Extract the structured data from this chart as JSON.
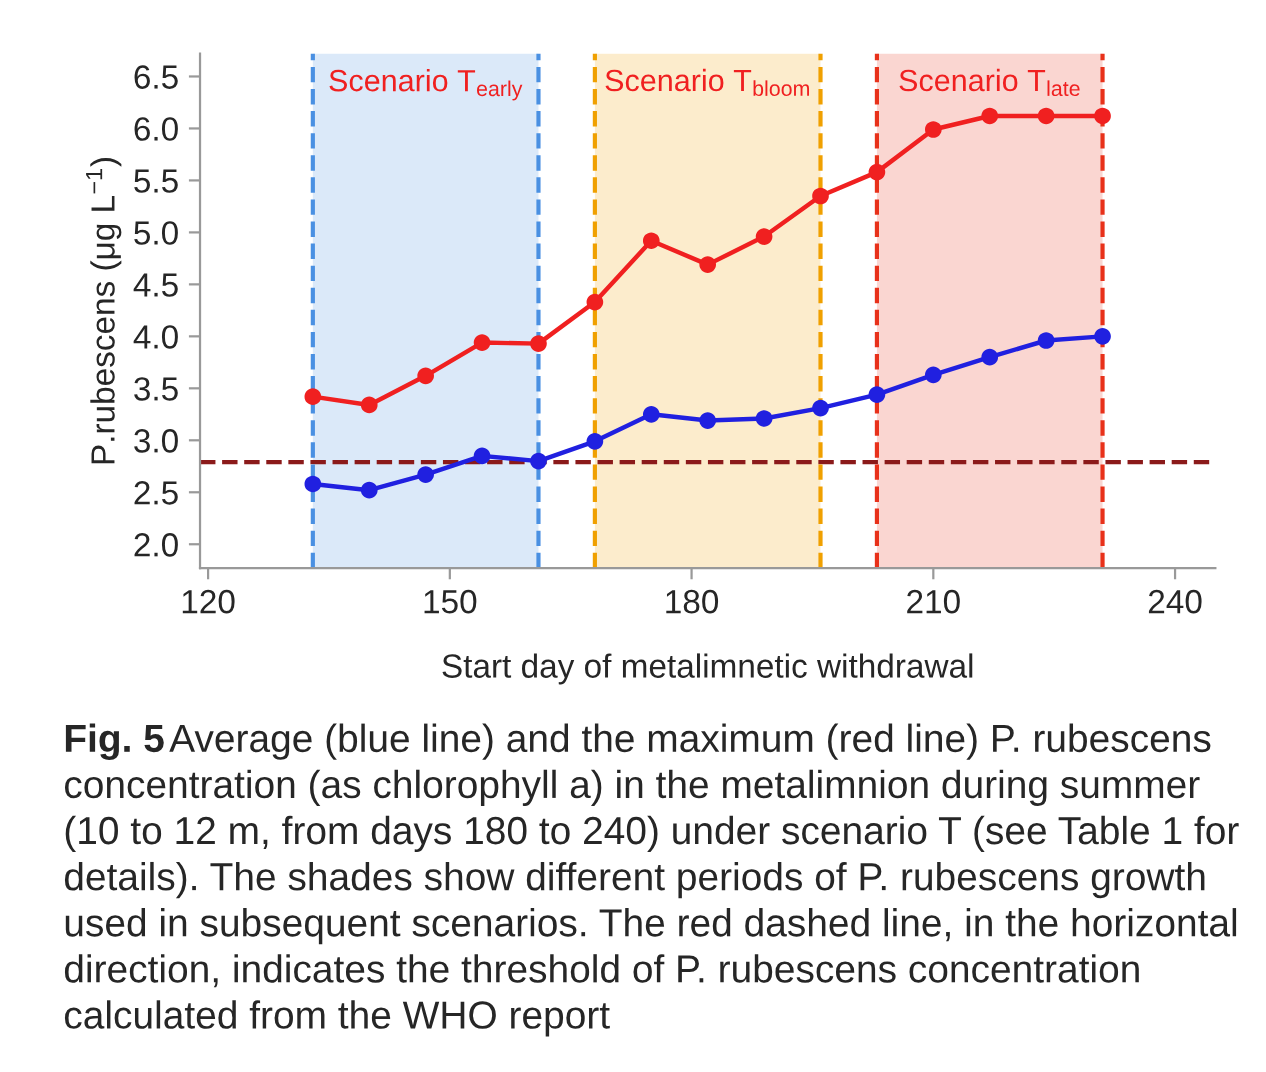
{
  "chart_data": {
    "type": "line",
    "xlabel": "Start day of metalimnetic withdrawal",
    "ylabel": "P.rubescens (μg L$^{−1}$)",
    "x": [
      133,
      140,
      147,
      154,
      161,
      168,
      175,
      182,
      189,
      196,
      203,
      210,
      217,
      224,
      231
    ],
    "series": [
      {
        "color": "#f02020",
        "values": [
          3.42,
          3.34,
          3.62,
          3.94,
          3.93,
          4.33,
          4.92,
          4.69,
          4.96,
          5.35,
          5.58,
          5.99,
          6.12,
          6.12,
          6.12
        ]
      },
      {
        "color": "#2020e0",
        "values": [
          2.58,
          2.52,
          2.67,
          2.85,
          2.8,
          2.99,
          3.25,
          3.19,
          3.21,
          3.31,
          3.44,
          3.63,
          3.8,
          3.96,
          4.0
        ]
      }
    ],
    "marker": "circle",
    "line_style": "solid",
    "grid": false,
    "legend": false,
    "xlim": [
      119,
      245
    ],
    "xticks": [
      120,
      150,
      180,
      210,
      240
    ],
    "ylim": [
      1.77,
      6.72
    ],
    "yticks": [
      {
        "value": 2,
        "label": "2.0"
      },
      2.5,
      {
        "value": 3,
        "label": "3.0"
      },
      3.5,
      {
        "value": 4,
        "label": "4.0"
      },
      4.5,
      {
        "value": 5,
        "label": "5.0"
      },
      5.5,
      {
        "value": 6,
        "label": "6.0"
      },
      6.5
    ],
    "ref_lines": [
      {
        "axis": "y",
        "value": 2.79,
        "color": "#8b1a1a",
        "line_style": "dashed"
      },
      {
        "axis": "x",
        "value": 133,
        "color": "#4a90e2",
        "line_style": "dashed"
      },
      {
        "axis": "x",
        "value": 161,
        "color": "#4a90e2",
        "line_style": "dashed"
      },
      {
        "axis": "x",
        "value": 168,
        "color": "#f0a000",
        "line_style": "dashed"
      },
      {
        "axis": "x",
        "value": 196,
        "color": "#f0a000",
        "line_style": "dashed"
      },
      {
        "axis": "x",
        "value": 203,
        "color": "#e8311a",
        "line_style": "dashed"
      },
      {
        "axis": "x",
        "value": 231,
        "color": "#e8311a",
        "line_style": "dashed"
      }
    ],
    "bands": [
      {
        "axis": "x",
        "from": 133,
        "to": 161,
        "label": "Scenario T$_{early}$",
        "color": "#4a90e2"
      },
      {
        "axis": "x",
        "from": 168,
        "to": 196,
        "label": "Scenario T$_{bloom}$",
        "color": "#f0a000"
      },
      {
        "axis": "x",
        "from": 203,
        "to": 231,
        "label": "Scenario T$_{late}$",
        "color": "#e8311a"
      }
    ],
    "annotations": [
      "Fig. 5",
      "Average (blue line) and the maximum (red line) P. rubescens concentration (as chlorophyll a) in the metalimnion during summer (10 to 12 m, from days 180 to 240) under scenario T (see Table 1 for details). The shades show different periods of P. rubescens growth used in subsequent scenarios. The red dashed line, in the horizontal direction, indicates the threshold of P. rubescens concentration calculated from the WHO report"
    ]
  }
}
